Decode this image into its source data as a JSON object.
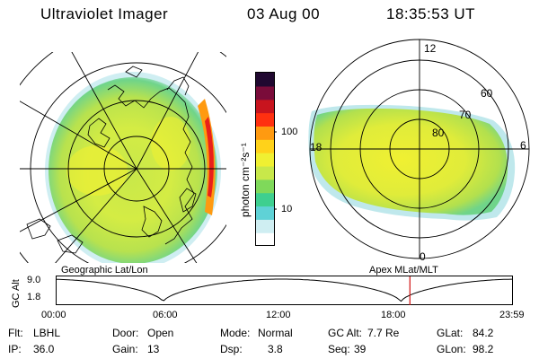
{
  "header": {
    "title": "Ultraviolet Imager",
    "date": "03 Aug 00",
    "time": "18:35:53 UT"
  },
  "colorbar": {
    "label": "photon cm⁻²s⁻¹",
    "ticks": [
      "100",
      "10"
    ],
    "colors": [
      "#ffffff",
      "#cfeef2",
      "#5fd2d6",
      "#3ecf8f",
      "#7fd95a",
      "#c8e84a",
      "#f0f032",
      "#ffd21a",
      "#ff9a10",
      "#ff3010",
      "#c8141e",
      "#7a0c3a",
      "#200830"
    ]
  },
  "left_map": {
    "caption": "Geographic Lat/Lon"
  },
  "right_map": {
    "caption": "Apex MLat/MLT",
    "mlt_labels": {
      "top": "12",
      "left": "18",
      "right": "6",
      "bottom": "0"
    },
    "lat_labels": [
      "60",
      "70",
      "80"
    ]
  },
  "timeline": {
    "ylabel": "GC Alt",
    "yticks": [
      "9.0",
      "1.8"
    ],
    "xticks": [
      "00:00",
      "06:00",
      "12:00",
      "18:00",
      "23:59"
    ],
    "marker_time": "18:35",
    "marker_color": "#d01010"
  },
  "info": {
    "flt_label": "Flt:",
    "flt_value": "LBHL",
    "ip_label": "IP:",
    "ip_value": "36.0",
    "door_label": "Door:",
    "door_value": "Open",
    "gain_label": "Gain:",
    "gain_value": "13",
    "mode_label": "Mode:",
    "mode_value": "Normal",
    "dsp_label": "Dsp:",
    "dsp_value": "3.8",
    "gcalt_label": "GC Alt:",
    "gcalt_value": "7.7 Re",
    "seq_label": "Seq:",
    "seq_value": "39",
    "glat_label": "GLat:",
    "glat_value": "84.2",
    "glon_label": "GLon:",
    "glon_value": "98.2"
  }
}
